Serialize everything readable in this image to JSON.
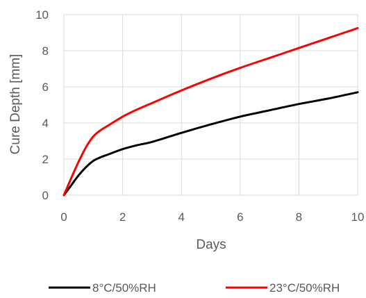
{
  "chart_data": {
    "type": "line",
    "title": "",
    "xlabel": "Days",
    "ylabel": "Cure Depth [mm]",
    "xlim": [
      0,
      10
    ],
    "ylim": [
      0,
      10
    ],
    "xticks": [
      0,
      2,
      4,
      6,
      8,
      10
    ],
    "yticks": [
      0,
      2,
      4,
      6,
      8,
      10
    ],
    "grid": true,
    "legend_position": "bottom",
    "series": [
      {
        "name": "8°C/50%RH",
        "color": "#000000",
        "x": [
          0,
          0.25,
          0.5,
          0.75,
          1,
          1.25,
          1.5,
          2,
          2.5,
          3,
          4,
          5,
          6,
          7,
          8,
          9,
          10
        ],
        "y": [
          0,
          0.55,
          1.1,
          1.55,
          1.9,
          2.1,
          2.25,
          2.55,
          2.77,
          2.95,
          3.45,
          3.92,
          4.35,
          4.7,
          5.05,
          5.35,
          5.7
        ]
      },
      {
        "name": "23°C/50%RH",
        "color": "#ff0000",
        "x": [
          0,
          0.25,
          0.5,
          0.75,
          1,
          1.25,
          1.5,
          2,
          2.5,
          3,
          4,
          5,
          6,
          7,
          8,
          9,
          10
        ],
        "y": [
          0,
          0.95,
          1.85,
          2.65,
          3.25,
          3.6,
          3.85,
          4.35,
          4.75,
          5.1,
          5.8,
          6.45,
          7.05,
          7.6,
          8.15,
          8.7,
          9.25
        ]
      }
    ]
  }
}
